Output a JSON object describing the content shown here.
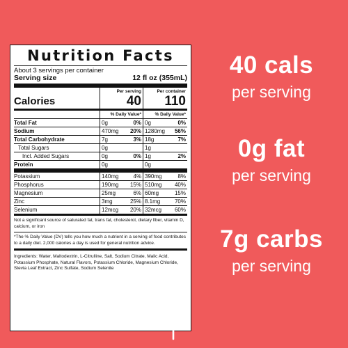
{
  "label": {
    "title": "Nutrition Facts",
    "servings": "About 3 servings per container",
    "serving_size_label": "Serving size",
    "serving_size_value": "12 fl oz (355mL)",
    "calories_label": "Calories",
    "per_serving_label": "Per serving",
    "per_container_label": "Per container",
    "calories_per_serving": "40",
    "calories_per_container": "110",
    "dv_header": "% Daily Value*",
    "rows": [
      {
        "name": "Total Fat",
        "a1": "0g",
        "p1": "0%",
        "a2": "0g",
        "p2": "0%"
      },
      {
        "name": "Sodium",
        "a1": "470mg",
        "p1": "20%",
        "a2": "1280mg",
        "p2": "56%"
      },
      {
        "name": "Total Carbohydrate",
        "a1": "7g",
        "p1": "3%",
        "a2": "18g",
        "p2": "7%"
      },
      {
        "name": "Total Sugars",
        "a1": "0g",
        "p1": "",
        "a2": "1g",
        "p2": ""
      },
      {
        "name": "Incl. Added Sugars",
        "a1": "0g",
        "p1": "0%",
        "a2": "1g",
        "p2": "2%"
      },
      {
        "name": "Protein",
        "a1": "0g",
        "p1": "",
        "a2": "0g",
        "p2": ""
      }
    ],
    "minerals": [
      {
        "name": "Potassium",
        "a1": "140mg",
        "p1": "4%",
        "a2": "390mg",
        "p2": "8%"
      },
      {
        "name": "Phosphorus",
        "a1": "190mg",
        "p1": "15%",
        "a2": "510mg",
        "p2": "40%"
      },
      {
        "name": "Magnesium",
        "a1": "25mg",
        "p1": "6%",
        "a2": "60mg",
        "p2": "15%"
      },
      {
        "name": "Zinc",
        "a1": "3mg",
        "p1": "25%",
        "a2": "8.1mg",
        "p2": "70%"
      },
      {
        "name": "Selenium",
        "a1": "12mcg",
        "p1": "20%",
        "a2": "32mcg",
        "p2": "60%"
      }
    ],
    "not_significant": "Not a significant source of saturated fat, trans fat, cholesterol, dietary fiber, vitamin D, calcium, or iron",
    "dv_footnote": "*The % Daily Value (DV) tells you how much a nutrient in a serving of food contributes to a daily diet. 2,000 calories a day is used for general nutrition advice.",
    "ingredients": "Ingredients: Water, Maltodextrin, L-Citrulline, Salt, Sodium Citrate, Malic Acid, Potassium Phosphate, Natural Flavors, Potassium Chloride, Magnesium Chloride, Stevia Leaf Extract, Zinc Sulfate, Sodium Selenite"
  },
  "claims": [
    {
      "big": "40 cals",
      "small": "per serving"
    },
    {
      "big": "0g fat",
      "small": "per serving"
    },
    {
      "big": "7g carbs",
      "small": "per serving"
    }
  ],
  "icons": {
    "leaf": "leaf-icon"
  },
  "colors": {
    "background": "#f05a5b",
    "text": "#ffffff",
    "label_bg": "#ffffff"
  }
}
